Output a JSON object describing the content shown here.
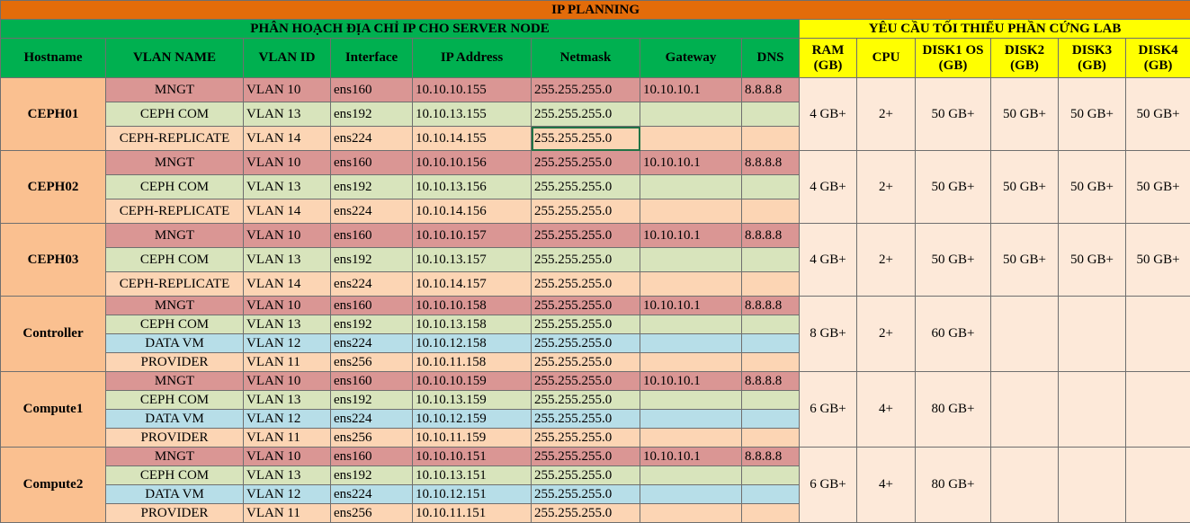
{
  "title": "IP PLANNING",
  "section_left": "PHÂN HOẠCH ĐỊA CHỈ IP CHO SERVER NODE",
  "section_right": "YÊU CẦU TỐI THIỂU PHẦN CỨNG LAB",
  "headers": {
    "hostname": "Hostname",
    "vlan_name": "VLAN NAME",
    "vlan_id": "VLAN ID",
    "interface": "Interface",
    "ip": "IP Address",
    "netmask": "Netmask",
    "gateway": "Gateway",
    "dns": "DNS",
    "ram": "RAM (GB)",
    "cpu": "CPU",
    "disk1": "DISK1 OS (GB)",
    "disk2": "DISK2 (GB)",
    "disk3": "DISK3 (GB)",
    "disk4": "DISK4 (GB)"
  },
  "colors": {
    "title_bg": "#e36c0a",
    "header_green": "#00b050",
    "header_yellow": "#ffff00",
    "host_bg": "#fac090",
    "hw_bg": "#fde9d9",
    "mngt": "#da9694",
    "ceph_com": "#d8e4bc",
    "replicate": "#fcd5b4",
    "data_vm": "#b7dee8",
    "provider": "#fcd5b4"
  },
  "hosts": [
    {
      "name": "CEPH01",
      "ram": "4 GB+",
      "cpu": "2+",
      "disk1": "50 GB+",
      "disk2": "50 GB+",
      "disk3": "50 GB+",
      "disk4": "50 GB+",
      "rows": [
        {
          "vlan_name": "MNGT",
          "vlan_id": "VLAN 10",
          "iface": "ens160",
          "ip": "10.10.10.155",
          "netmask": "255.255.255.0",
          "gateway": "10.10.10.1",
          "dns": "8.8.8.8"
        },
        {
          "vlan_name": "CEPH COM",
          "vlan_id": "VLAN 13",
          "iface": "ens192",
          "ip": "10.10.13.155",
          "netmask": "255.255.255.0",
          "gateway": "",
          "dns": ""
        },
        {
          "vlan_name": "CEPH-REPLICATE",
          "vlan_id": "VLAN 14",
          "iface": "ens224",
          "ip": "10.10.14.155",
          "netmask": "255.255.255.0",
          "gateway": "",
          "dns": ""
        }
      ]
    },
    {
      "name": "CEPH02",
      "ram": "4 GB+",
      "cpu": "2+",
      "disk1": "50 GB+",
      "disk2": "50 GB+",
      "disk3": "50 GB+",
      "disk4": "50 GB+",
      "rows": [
        {
          "vlan_name": "MNGT",
          "vlan_id": "VLAN 10",
          "iface": "ens160",
          "ip": "10.10.10.156",
          "netmask": "255.255.255.0",
          "gateway": "10.10.10.1",
          "dns": "8.8.8.8"
        },
        {
          "vlan_name": "CEPH COM",
          "vlan_id": "VLAN 13",
          "iface": "ens192",
          "ip": "10.10.13.156",
          "netmask": "255.255.255.0",
          "gateway": "",
          "dns": ""
        },
        {
          "vlan_name": "CEPH-REPLICATE",
          "vlan_id": "VLAN 14",
          "iface": "ens224",
          "ip": "10.10.14.156",
          "netmask": "255.255.255.0",
          "gateway": "",
          "dns": ""
        }
      ]
    },
    {
      "name": "CEPH03",
      "ram": "4 GB+",
      "cpu": "2+",
      "disk1": "50 GB+",
      "disk2": "50 GB+",
      "disk3": "50 GB+",
      "disk4": "50 GB+",
      "rows": [
        {
          "vlan_name": "MNGT",
          "vlan_id": "VLAN 10",
          "iface": "ens160",
          "ip": "10.10.10.157",
          "netmask": "255.255.255.0",
          "gateway": "10.10.10.1",
          "dns": "8.8.8.8"
        },
        {
          "vlan_name": "CEPH COM",
          "vlan_id": "VLAN 13",
          "iface": "ens192",
          "ip": "10.10.13.157",
          "netmask": "255.255.255.0",
          "gateway": "",
          "dns": ""
        },
        {
          "vlan_name": "CEPH-REPLICATE",
          "vlan_id": "VLAN 14",
          "iface": "ens224",
          "ip": "10.10.14.157",
          "netmask": "255.255.255.0",
          "gateway": "",
          "dns": ""
        }
      ]
    },
    {
      "name": "Controller",
      "ram": "8 GB+",
      "cpu": "2+",
      "disk1": "60 GB+",
      "disk2": "",
      "disk3": "",
      "disk4": "",
      "rows": [
        {
          "vlan_name": "MNGT",
          "vlan_id": "VLAN 10",
          "iface": "ens160",
          "ip": "10.10.10.158",
          "netmask": "255.255.255.0",
          "gateway": "10.10.10.1",
          "dns": "8.8.8.8"
        },
        {
          "vlan_name": "CEPH COM",
          "vlan_id": "VLAN 13",
          "iface": "ens192",
          "ip": "10.10.13.158",
          "netmask": "255.255.255.0",
          "gateway": "",
          "dns": ""
        },
        {
          "vlan_name": "DATA VM",
          "vlan_id": "VLAN 12",
          "iface": "ens224",
          "ip": "10.10.12.158",
          "netmask": "255.255.255.0",
          "gateway": "",
          "dns": ""
        },
        {
          "vlan_name": "PROVIDER",
          "vlan_id": "VLAN 11",
          "iface": "ens256",
          "ip": "10.10.11.158",
          "netmask": "255.255.255.0",
          "gateway": "",
          "dns": ""
        }
      ]
    },
    {
      "name": "Compute1",
      "ram": "6 GB+",
      "cpu": "4+",
      "disk1": "80 GB+",
      "disk2": "",
      "disk3": "",
      "disk4": "",
      "rows": [
        {
          "vlan_name": "MNGT",
          "vlan_id": "VLAN 10",
          "iface": "ens160",
          "ip": "10.10.10.159",
          "netmask": "255.255.255.0",
          "gateway": "10.10.10.1",
          "dns": "8.8.8.8"
        },
        {
          "vlan_name": "CEPH COM",
          "vlan_id": "VLAN 13",
          "iface": "ens192",
          "ip": "10.10.13.159",
          "netmask": "255.255.255.0",
          "gateway": "",
          "dns": ""
        },
        {
          "vlan_name": "DATA VM",
          "vlan_id": "VLAN 12",
          "iface": "ens224",
          "ip": "10.10.12.159",
          "netmask": "255.255.255.0",
          "gateway": "",
          "dns": ""
        },
        {
          "vlan_name": "PROVIDER",
          "vlan_id": "VLAN 11",
          "iface": "ens256",
          "ip": "10.10.11.159",
          "netmask": "255.255.255.0",
          "gateway": "",
          "dns": ""
        }
      ]
    },
    {
      "name": "Compute2",
      "ram": "6 GB+",
      "cpu": "4+",
      "disk1": "80 GB+",
      "disk2": "",
      "disk3": "",
      "disk4": "",
      "rows": [
        {
          "vlan_name": "MNGT",
          "vlan_id": "VLAN 10",
          "iface": "ens160",
          "ip": "10.10.10.151",
          "netmask": "255.255.255.0",
          "gateway": "10.10.10.1",
          "dns": "8.8.8.8"
        },
        {
          "vlan_name": "CEPH COM",
          "vlan_id": "VLAN 13",
          "iface": "ens192",
          "ip": "10.10.13.151",
          "netmask": "255.255.255.0",
          "gateway": "",
          "dns": ""
        },
        {
          "vlan_name": "DATA VM",
          "vlan_id": "VLAN 12",
          "iface": "ens224",
          "ip": "10.10.12.151",
          "netmask": "255.255.255.0",
          "gateway": "",
          "dns": ""
        },
        {
          "vlan_name": "PROVIDER",
          "vlan_id": "VLAN 11",
          "iface": "ens256",
          "ip": "10.10.11.151",
          "netmask": "255.255.255.0",
          "gateway": "",
          "dns": ""
        }
      ]
    }
  ]
}
